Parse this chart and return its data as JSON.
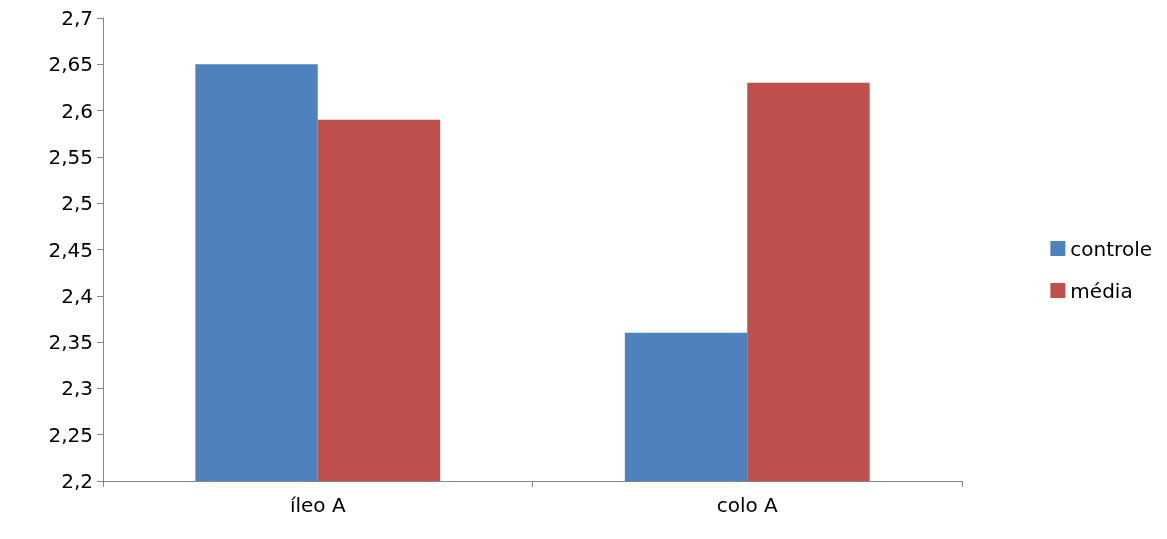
{
  "chart_data": {
    "type": "bar",
    "categories": [
      "íleo A",
      "colo A"
    ],
    "series": [
      {
        "name": "controle",
        "color": "#4f81bd",
        "values": [
          2.65,
          2.36
        ]
      },
      {
        "name": "média",
        "color": "#c0504d",
        "values": [
          2.59,
          2.63
        ]
      }
    ],
    "ylim": [
      2.2,
      2.7
    ],
    "yticks": [
      {
        "value": 2.2,
        "label": "2,2"
      },
      {
        "value": 2.25,
        "label": "2,25"
      },
      {
        "value": 2.3,
        "label": "2,3"
      },
      {
        "value": 2.35,
        "label": "2,35"
      },
      {
        "value": 2.4,
        "label": "2,4"
      },
      {
        "value": 2.45,
        "label": "2,45"
      },
      {
        "value": 2.5,
        "label": "2,5"
      },
      {
        "value": 2.55,
        "label": "2,55"
      },
      {
        "value": 2.6,
        "label": "2,6"
      },
      {
        "value": 2.65,
        "label": "2,65"
      },
      {
        "value": 2.7,
        "label": "2,7"
      }
    ],
    "grid": false,
    "legend": "right"
  }
}
